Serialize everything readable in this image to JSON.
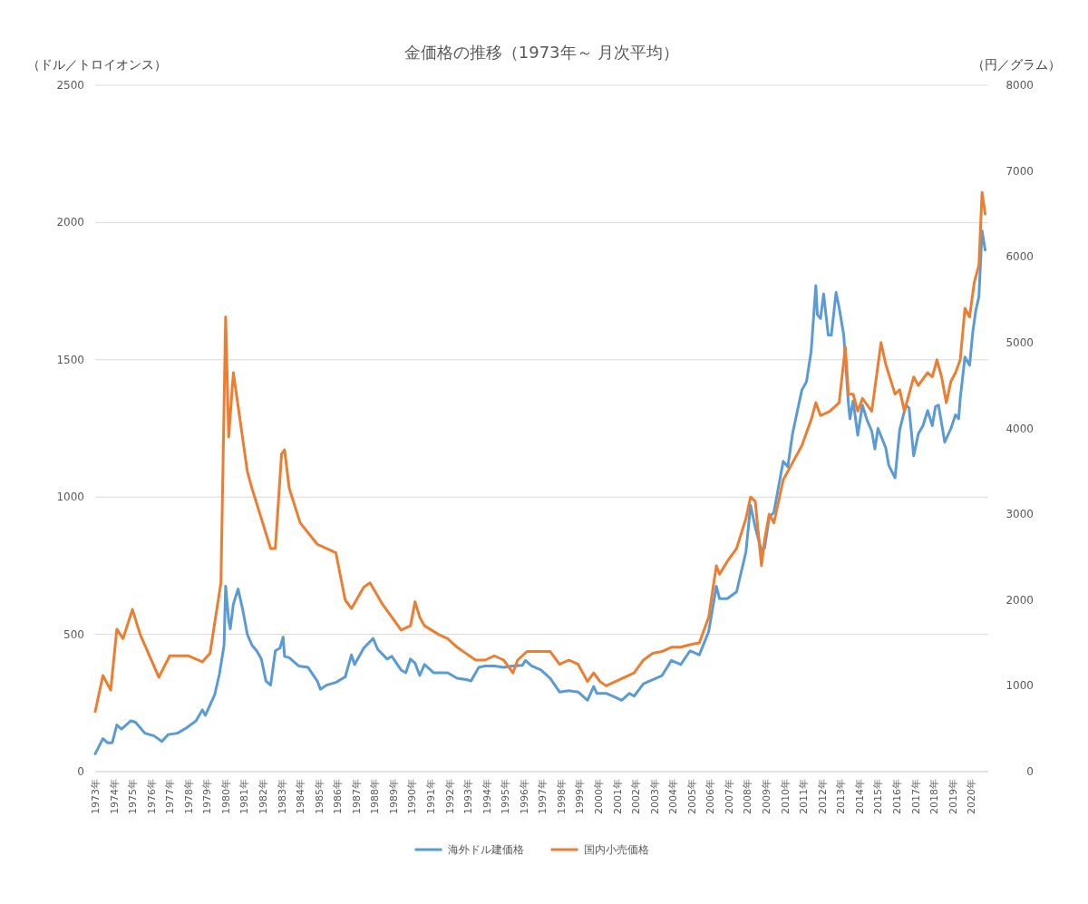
{
  "chart_data": {
    "type": "line",
    "title": "金価格の推移（1973年～ 月次平均）",
    "ylabel": "（ドル／トロイオンス）",
    "y2label": "（円／グラム）",
    "xlim": [
      "1973-01",
      "2020-12"
    ],
    "xticks": [
      {
        "value": "1973-01",
        "label": "1973年"
      },
      {
        "value": "1974-01",
        "label": "1974年"
      },
      {
        "value": "1975-01",
        "label": "1975年"
      },
      {
        "value": "1976-01",
        "label": "1976年"
      },
      {
        "value": "1977-01",
        "label": "1977年"
      },
      {
        "value": "1978-01",
        "label": "1978年"
      },
      {
        "value": "1979-01",
        "label": "1979年"
      },
      {
        "value": "1980-01",
        "label": "1980年"
      },
      {
        "value": "1981-01",
        "label": "1981年"
      },
      {
        "value": "1982-01",
        "label": "1982年"
      },
      {
        "value": "1983-01",
        "label": "1983年"
      },
      {
        "value": "1984-01",
        "label": "1984年"
      },
      {
        "value": "1985-01",
        "label": "1985年"
      },
      {
        "value": "1986-01",
        "label": "1986年"
      },
      {
        "value": "1987-01",
        "label": "1987年"
      },
      {
        "value": "1988-01",
        "label": "1988年"
      },
      {
        "value": "1989-01",
        "label": "1989年"
      },
      {
        "value": "1990-01",
        "label": "1990年"
      },
      {
        "value": "1991-01",
        "label": "1991年"
      },
      {
        "value": "1992-01",
        "label": "1992年"
      },
      {
        "value": "1993-01",
        "label": "1993年"
      },
      {
        "value": "1994-01",
        "label": "1994年"
      },
      {
        "value": "1995-01",
        "label": "1995年"
      },
      {
        "value": "1996-01",
        "label": "1996年"
      },
      {
        "value": "1997-01",
        "label": "1997年"
      },
      {
        "value": "1998-01",
        "label": "1998年"
      },
      {
        "value": "1999-01",
        "label": "1999年"
      },
      {
        "value": "2000-01",
        "label": "2000年"
      },
      {
        "value": "2001-01",
        "label": "2001年"
      },
      {
        "value": "2002-01",
        "label": "2002年"
      },
      {
        "value": "2003-01",
        "label": "2003年"
      },
      {
        "value": "2004-01",
        "label": "2004年"
      },
      {
        "value": "2005-01",
        "label": "2005年"
      },
      {
        "value": "2006-01",
        "label": "2006年"
      },
      {
        "value": "2007-01",
        "label": "2007年"
      },
      {
        "value": "2008-01",
        "label": "2008年"
      },
      {
        "value": "2009-01",
        "label": "2009年"
      },
      {
        "value": "2010-01",
        "label": "2010年"
      },
      {
        "value": "2011-01",
        "label": "2011年"
      },
      {
        "value": "2012-01",
        "label": "2012年"
      },
      {
        "value": "2013-01",
        "label": "2013年"
      },
      {
        "value": "2014-01",
        "label": "2014年"
      },
      {
        "value": "2015-01",
        "label": "2015年"
      },
      {
        "value": "2016-01",
        "label": "2016年"
      },
      {
        "value": "2017-01",
        "label": "2017年"
      },
      {
        "value": "2018-01",
        "label": "2018年"
      },
      {
        "value": "2019-01",
        "label": "2019年"
      },
      {
        "value": "2020-01",
        "label": "2020年"
      }
    ],
    "ylim": [
      0,
      2500
    ],
    "yticks": [
      0,
      500,
      1000,
      1500,
      2000,
      2500
    ],
    "y2lim": [
      0,
      8000
    ],
    "y2ticks": [
      0,
      1000,
      2000,
      3000,
      4000,
      5000,
      6000,
      7000,
      8000
    ],
    "grid": "y",
    "legend": "bottom",
    "series": [
      {
        "name": "海外ドル建価格",
        "color": "#5b9bd5",
        "x": [
          "1973-01",
          "1973-06",
          "1973-09",
          "1973-12",
          "1974-03",
          "1974-06",
          "1974-12",
          "1975-03",
          "1975-09",
          "1976-03",
          "1976-08",
          "1976-12",
          "1977-06",
          "1977-12",
          "1978-06",
          "1978-10",
          "1978-12",
          "1979-06",
          "1979-09",
          "1979-12",
          "1980-01",
          "1980-03",
          "1980-04",
          "1980-06",
          "1980-09",
          "1980-12",
          "1981-03",
          "1981-06",
          "1981-09",
          "1981-12",
          "1982-03",
          "1982-06",
          "1982-09",
          "1982-12",
          "1983-02",
          "1983-03",
          "1983-06",
          "1983-12",
          "1984-06",
          "1984-12",
          "1985-02",
          "1985-06",
          "1985-12",
          "1986-06",
          "1986-10",
          "1986-12",
          "1987-06",
          "1987-12",
          "1988-03",
          "1988-09",
          "1988-12",
          "1989-06",
          "1989-09",
          "1989-12",
          "1990-03",
          "1990-06",
          "1990-09",
          "1991-03",
          "1991-12",
          "1992-06",
          "1992-12",
          "1993-03",
          "1993-08",
          "1993-12",
          "1994-06",
          "1994-12",
          "1995-06",
          "1995-12",
          "1996-02",
          "1996-06",
          "1996-12",
          "1997-06",
          "1997-12",
          "1998-06",
          "1998-12",
          "1999-06",
          "1999-10",
          "1999-12",
          "2000-06",
          "2000-12",
          "2001-04",
          "2001-09",
          "2001-12",
          "2002-06",
          "2002-12",
          "2003-06",
          "2003-12",
          "2004-06",
          "2004-12",
          "2005-06",
          "2005-12",
          "2006-05",
          "2006-07",
          "2006-12",
          "2007-06",
          "2007-12",
          "2008-03",
          "2008-06",
          "2008-10",
          "2008-12",
          "2009-03",
          "2009-06",
          "2009-12",
          "2010-03",
          "2010-06",
          "2010-12",
          "2011-03",
          "2011-06",
          "2011-09",
          "2011-10",
          "2011-12",
          "2012-02",
          "2012-05",
          "2012-07",
          "2012-10",
          "2012-12",
          "2013-03",
          "2013-06",
          "2013-07",
          "2013-09",
          "2013-12",
          "2014-03",
          "2014-06",
          "2014-09",
          "2014-11",
          "2015-01",
          "2015-06",
          "2015-08",
          "2015-12",
          "2016-03",
          "2016-07",
          "2016-09",
          "2016-12",
          "2017-03",
          "2017-06",
          "2017-09",
          "2017-12",
          "2018-02",
          "2018-04",
          "2018-08",
          "2018-12",
          "2019-03",
          "2019-05",
          "2019-06",
          "2019-09",
          "2019-12",
          "2020-02",
          "2020-04",
          "2020-06",
          "2020-08",
          "2020-10"
        ],
        "values": [
          65,
          120,
          105,
          105,
          170,
          155,
          185,
          180,
          140,
          130,
          110,
          135,
          140,
          160,
          185,
          225,
          205,
          280,
          355,
          460,
          675,
          550,
          520,
          610,
          665,
          590,
          500,
          460,
          440,
          410,
          330,
          315,
          440,
          450,
          490,
          420,
          415,
          385,
          380,
          330,
          300,
          315,
          325,
          345,
          425,
          390,
          450,
          485,
          445,
          410,
          420,
          370,
          360,
          410,
          395,
          350,
          390,
          360,
          360,
          340,
          335,
          330,
          380,
          385,
          385,
          380,
          385,
          387,
          405,
          385,
          370,
          340,
          290,
          295,
          290,
          260,
          310,
          285,
          285,
          270,
          260,
          285,
          275,
          320,
          335,
          350,
          405,
          390,
          440,
          425,
          510,
          675,
          630,
          630,
          655,
          800,
          970,
          890,
          805,
          815,
          925,
          945,
          1130,
          1110,
          1230,
          1390,
          1420,
          1530,
          1770,
          1665,
          1650,
          1740,
          1590,
          1590,
          1745,
          1690,
          1590,
          1340,
          1285,
          1350,
          1225,
          1335,
          1280,
          1240,
          1175,
          1250,
          1180,
          1115,
          1070,
          1245,
          1335,
          1325,
          1150,
          1230,
          1260,
          1315,
          1260,
          1330,
          1335,
          1200,
          1250,
          1300,
          1285,
          1360,
          1510,
          1480,
          1600,
          1680,
          1730,
          1970,
          1900
        ]
      },
      {
        "name": "国内小売価格",
        "color": "#ed7d31",
        "axis": "y2",
        "x": [
          "1973-01",
          "1973-06",
          "1973-11",
          "1974-03",
          "1974-07",
          "1975-01",
          "1975-06",
          "1976-06",
          "1977-01",
          "1978-01",
          "1978-10",
          "1979-03",
          "1979-10",
          "1980-01",
          "1980-03",
          "1980-06",
          "1981-03",
          "1981-06",
          "1981-12",
          "1982-06",
          "1982-09",
          "1983-01",
          "1983-03",
          "1983-06",
          "1984-01",
          "1984-12",
          "1985-12",
          "1986-06",
          "1986-10",
          "1987-06",
          "1987-10",
          "1988-06",
          "1988-12",
          "1989-06",
          "1989-12",
          "1990-03",
          "1990-06",
          "1990-09",
          "1991-06",
          "1991-12",
          "1992-06",
          "1993-06",
          "1993-12",
          "1994-06",
          "1994-12",
          "1995-06",
          "1995-09",
          "1996-03",
          "1996-12",
          "1997-06",
          "1997-12",
          "1998-06",
          "1998-12",
          "1999-06",
          "1999-10",
          "2000-02",
          "2000-06",
          "2000-12",
          "2001-06",
          "2001-12",
          "2002-06",
          "2002-12",
          "2003-06",
          "2003-12",
          "2004-06",
          "2004-12",
          "2005-06",
          "2005-12",
          "2006-05",
          "2006-07",
          "2006-12",
          "2007-06",
          "2007-12",
          "2008-03",
          "2008-06",
          "2008-10",
          "2008-12",
          "2009-03",
          "2009-06",
          "2009-12",
          "2010-06",
          "2010-12",
          "2011-03",
          "2011-06",
          "2011-09",
          "2011-12",
          "2012-06",
          "2012-12",
          "2013-04",
          "2013-06",
          "2013-09",
          "2013-12",
          "2014-03",
          "2014-09",
          "2014-12",
          "2015-03",
          "2015-06",
          "2015-12",
          "2016-03",
          "2016-06",
          "2016-09",
          "2016-12",
          "2017-03",
          "2017-09",
          "2017-12",
          "2018-03",
          "2018-06",
          "2018-09",
          "2018-12",
          "2019-03",
          "2019-06",
          "2019-09",
          "2019-12",
          "2020-03",
          "2020-06",
          "2020-08",
          "2020-10"
        ],
        "values": [
          700,
          1120,
          950,
          1660,
          1550,
          1890,
          1600,
          1100,
          1350,
          1350,
          1280,
          1380,
          2200,
          5300,
          3900,
          4650,
          3500,
          3300,
          2950,
          2600,
          2600,
          3700,
          3750,
          3300,
          2900,
          2650,
          2550,
          2000,
          1900,
          2150,
          2200,
          1950,
          1800,
          1650,
          1700,
          1980,
          1800,
          1700,
          1600,
          1550,
          1450,
          1300,
          1300,
          1350,
          1300,
          1150,
          1300,
          1400,
          1400,
          1400,
          1250,
          1300,
          1250,
          1050,
          1150,
          1050,
          1000,
          1050,
          1100,
          1150,
          1300,
          1380,
          1400,
          1450,
          1450,
          1480,
          1500,
          1800,
          2400,
          2300,
          2450,
          2600,
          2950,
          3200,
          3150,
          2400,
          2700,
          3000,
          2900,
          3400,
          3600,
          3800,
          3950,
          4100,
          4300,
          4150,
          4200,
          4300,
          4950,
          4400,
          4400,
          4200,
          4350,
          4200,
          4600,
          5000,
          4750,
          4400,
          4450,
          4200,
          4400,
          4600,
          4500,
          4650,
          4600,
          4800,
          4600,
          4300,
          4550,
          4650,
          4800,
          5400,
          5300,
          5700,
          5900,
          6750,
          6500
        ]
      }
    ]
  }
}
